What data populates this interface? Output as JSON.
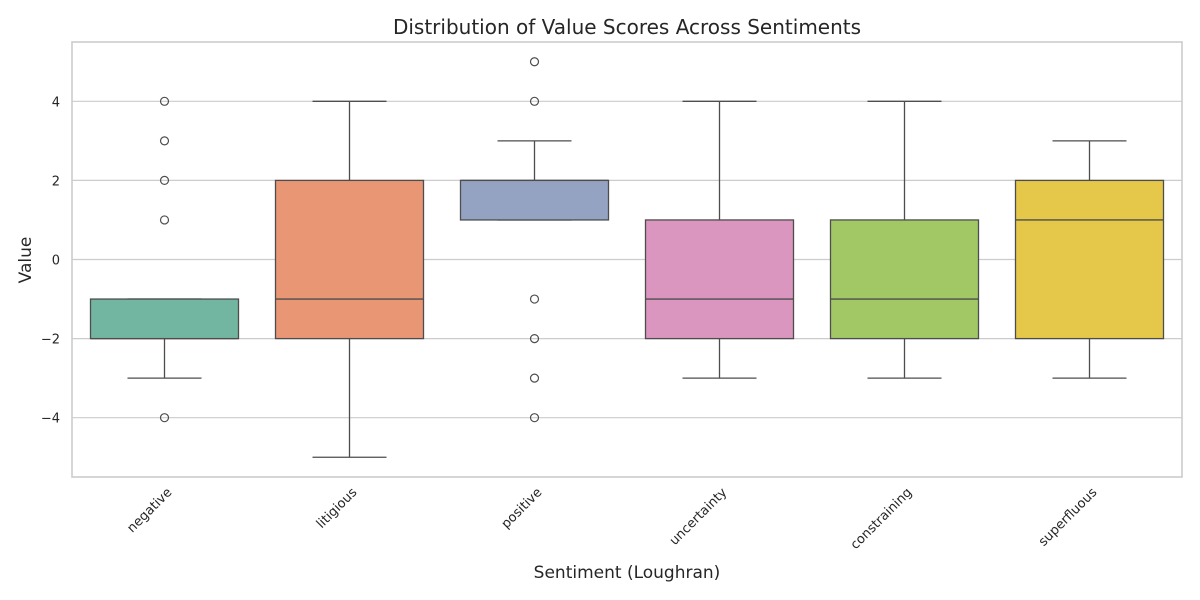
{
  "chart_data": {
    "type": "box",
    "title": "Distribution of Value Scores Across Sentiments",
    "xlabel": "Sentiment (Loughran)",
    "ylabel": "Value",
    "ylim": [
      -5.5,
      5.5
    ],
    "yticks": [
      -4,
      -2,
      0,
      2,
      4
    ],
    "grid": "horizontal",
    "categories": [
      "negative",
      "litigious",
      "positive",
      "uncertainty",
      "constraining",
      "superfluous"
    ],
    "boxes": [
      {
        "category": "negative",
        "color": "#72b6a1",
        "whisker_low": -3,
        "q1": -2,
        "median": -2,
        "q3": -1,
        "whisker_high": -1,
        "fliers": [
          -4,
          1,
          2,
          3,
          4
        ]
      },
      {
        "category": "litigious",
        "color": "#e99675",
        "whisker_low": -5,
        "q1": -2,
        "median": -1,
        "q3": 2,
        "whisker_high": 4,
        "fliers": []
      },
      {
        "category": "positive",
        "color": "#95a3c3",
        "whisker_low": 1,
        "q1": 1,
        "median": 2,
        "q3": 2,
        "whisker_high": 3,
        "fliers": [
          -4,
          -3,
          -2,
          -1,
          4,
          5
        ]
      },
      {
        "category": "uncertainty",
        "color": "#db96c0",
        "whisker_low": -3,
        "q1": -2,
        "median": -1,
        "q3": 1,
        "whisker_high": 4,
        "fliers": []
      },
      {
        "category": "constraining",
        "color": "#a2c865",
        "whisker_low": -3,
        "q1": -2,
        "median": -1,
        "q3": 1,
        "whisker_high": 4,
        "fliers": []
      },
      {
        "category": "superfluous",
        "color": "#e5c849",
        "whisker_low": -3,
        "q1": -2,
        "median": 1,
        "q3": 2,
        "whisker_high": 3,
        "fliers": []
      }
    ]
  }
}
